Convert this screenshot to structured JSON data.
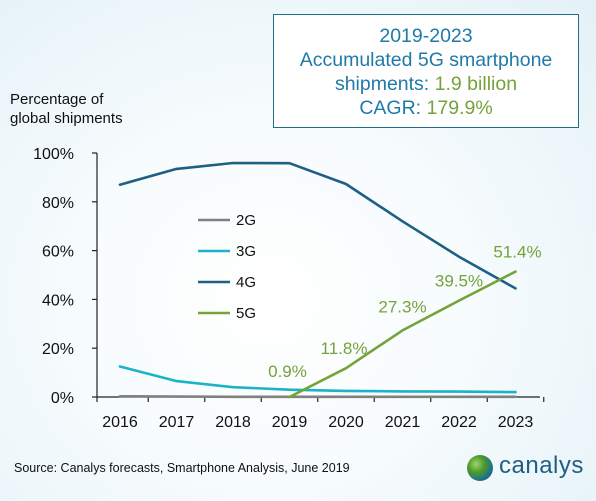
{
  "callout": {
    "line1": "2019-2023",
    "line2": "Accumulated 5G smartphone",
    "line3_prefix": "shipments: ",
    "line3_value": "1.9 billion",
    "line4_prefix": "CAGR: ",
    "line4_value": "179.9%"
  },
  "y_axis_title_line1": "Percentage of",
  "y_axis_title_line2": "global shipments",
  "source": "Source: Canalys forecasts, Smartphone Analysis, June 2019",
  "logo_text": "canalys",
  "colors": {
    "2G": "#808080",
    "3G": "#1bb3c7",
    "4G": "#1f5f86",
    "5G": "#76a23a"
  },
  "chart_data": {
    "type": "line",
    "x": [
      "2016",
      "2017",
      "2018",
      "2019",
      "2020",
      "2021",
      "2022",
      "2023"
    ],
    "ylim": [
      0,
      100
    ],
    "yticks": [
      "0%",
      "20%",
      "40%",
      "60%",
      "80%",
      "100%"
    ],
    "legend_position": "left-center",
    "grid": false,
    "series": [
      {
        "name": "2G",
        "values": [
          0.3,
          0.2,
          0.1,
          0.1,
          0.1,
          0.1,
          0.1,
          0.1
        ]
      },
      {
        "name": "3G",
        "values": [
          12.5,
          6.5,
          4.0,
          3.0,
          2.5,
          2.3,
          2.2,
          2.0
        ]
      },
      {
        "name": "4G",
        "values": [
          87.0,
          93.5,
          95.9,
          95.8,
          87.3,
          72.0,
          57.5,
          44.5
        ]
      },
      {
        "name": "5G",
        "values": [
          null,
          null,
          null,
          0.9,
          11.8,
          27.3,
          39.5,
          51.4
        ]
      }
    ],
    "data_labels": [
      {
        "series": "5G",
        "x": "2019",
        "text": "0.9%"
      },
      {
        "series": "5G",
        "x": "2020",
        "text": "11.8%"
      },
      {
        "series": "5G",
        "x": "2021",
        "text": "27.3%"
      },
      {
        "series": "5G",
        "x": "2022",
        "text": "39.5%"
      },
      {
        "series": "5G",
        "x": "2023",
        "text": "51.4%"
      }
    ]
  }
}
